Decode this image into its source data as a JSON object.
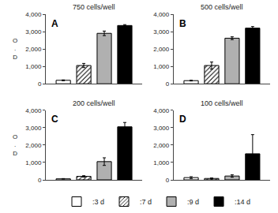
{
  "chart_data": [
    {
      "type": "bar",
      "title": "750 cells/well",
      "annotations": [
        "A"
      ],
      "ylabel": "O\n.\nD",
      "categories": [
        null
      ],
      "series": [
        {
          "name": ":3 d",
          "color": "white",
          "values": [
            200
          ],
          "errors": [
            25
          ]
        },
        {
          "name": ":7 d",
          "color": "white",
          "values": [
            1050
          ],
          "errors": [
            120
          ]
        },
        {
          "name": ":9 d",
          "color": "#b0b0b0",
          "values": [
            2900
          ],
          "errors": [
            130
          ]
        },
        {
          "name": ":14 d",
          "color": "black",
          "values": [
            3350
          ],
          "errors": [
            50
          ]
        }
      ],
      "ylim": [
        0,
        4000
      ],
      "yticks": [
        0,
        {
          "value": 1000,
          "label": "1,000"
        },
        {
          "value": 2000,
          "label": "2,000"
        },
        {
          "value": 3000,
          "label": "3,000"
        },
        {
          "value": 4000,
          "label": "4,000"
        }
      ],
      "grid": false,
      "tick_labels": "y",
      "legend": "bottom"
    },
    {
      "type": "bar",
      "title": "500 cells/well",
      "annotations": [
        "B"
      ],
      "categories": [
        null
      ],
      "series": [
        {
          "name": ":3 d",
          "color": "white",
          "values": [
            180
          ],
          "errors": [
            20
          ]
        },
        {
          "name": ":7 d",
          "color": "white",
          "values": [
            1050
          ],
          "errors": [
            200
          ]
        },
        {
          "name": ":9 d",
          "color": "#b0b0b0",
          "values": [
            2620
          ],
          "errors": [
            80
          ]
        },
        {
          "name": ":14 d",
          "color": "black",
          "values": [
            3200
          ],
          "errors": [
            90
          ]
        }
      ],
      "ylim": [
        0,
        4000
      ],
      "yticks": [
        0,
        {
          "value": 1000,
          "label": "1,000"
        },
        {
          "value": 2000,
          "label": "2,000"
        },
        {
          "value": 3000,
          "label": "3,000"
        },
        {
          "value": 4000,
          "label": "4,000"
        }
      ],
      "grid": false,
      "tick_labels": "y"
    },
    {
      "type": "bar",
      "title": "200 cells/well",
      "annotations": [
        "C"
      ],
      "ylabel": "O\n.\nD",
      "categories": [
        null
      ],
      "series": [
        {
          "name": ":3 d",
          "color": "white",
          "values": [
            60
          ],
          "errors": [
            15
          ]
        },
        {
          "name": ":7 d",
          "color": "white",
          "values": [
            200
          ],
          "errors": [
            40
          ]
        },
        {
          "name": ":9 d",
          "color": "#b0b0b0",
          "values": [
            1050
          ],
          "errors": [
            220
          ]
        },
        {
          "name": ":14 d",
          "color": "black",
          "values": [
            3050
          ],
          "errors": [
            250
          ]
        }
      ],
      "ylim": [
        0,
        4000
      ],
      "yticks": [
        0,
        {
          "value": 1000,
          "label": "1,000"
        },
        {
          "value": 2000,
          "label": "2,000"
        },
        {
          "value": 3000,
          "label": "3,000"
        },
        {
          "value": 4000,
          "label": "4,000"
        }
      ],
      "grid": false,
      "tick_labels": "y"
    },
    {
      "type": "bar",
      "title": "100 cells/well",
      "annotations": [
        "D"
      ],
      "categories": [
        null
      ],
      "series": [
        {
          "name": ":3 d",
          "color": "white",
          "values": [
            130
          ],
          "errors": [
            50
          ]
        },
        {
          "name": ":7 d",
          "color": "white",
          "values": [
            80
          ],
          "errors": [
            30
          ]
        },
        {
          "name": ":9 d",
          "color": "#b0b0b0",
          "values": [
            220
          ],
          "errors": [
            70
          ]
        },
        {
          "name": ":14 d",
          "color": "black",
          "values": [
            1500
          ],
          "errors": [
            1100
          ]
        }
      ],
      "ylim": [
        0,
        4000
      ],
      "yticks": [
        0,
        {
          "value": 1000,
          "label": "1,000"
        },
        {
          "value": 2000,
          "label": "2,000"
        },
        {
          "value": 3000,
          "label": "3,000"
        },
        {
          "value": 4000,
          "label": "4,000"
        }
      ],
      "grid": false,
      "tick_labels": "y"
    }
  ]
}
